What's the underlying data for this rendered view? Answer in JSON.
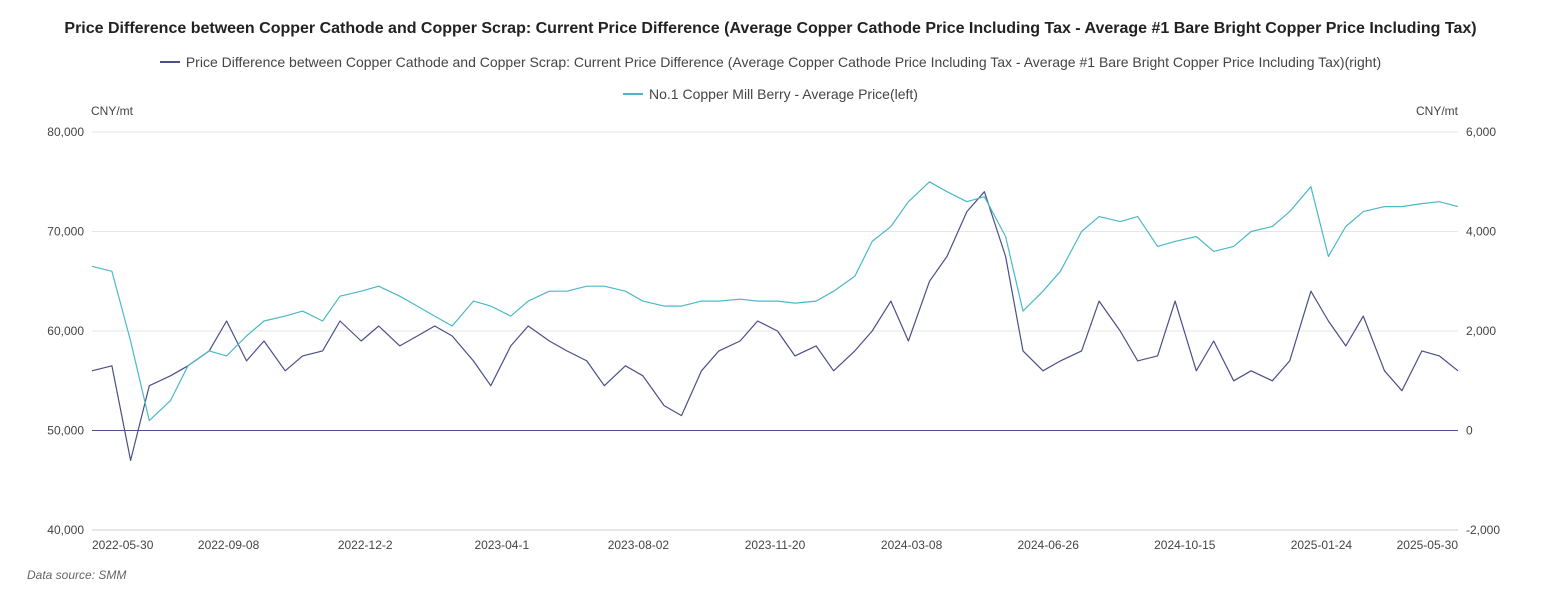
{
  "chart_data": {
    "type": "line",
    "title": "Price Difference between Copper Cathode and Copper Scrap: Current Price Difference (Average Copper Cathode Price Including Tax - Average #1 Bare Bright Copper Price Including Tax)",
    "left_unit": "CNY/mt",
    "right_unit": "CNY/mt",
    "left_axis": {
      "min": 40000,
      "max": 80000,
      "ticks": [
        "40,000",
        "50,000",
        "60,000",
        "70,000",
        "80,000"
      ]
    },
    "right_axis": {
      "min": -2000,
      "max": 6000,
      "ticks": [
        "-2,000",
        "0",
        "2,000",
        "4,000",
        "6,000"
      ]
    },
    "x_ticks": [
      "2022-05-30",
      "2022-09-08",
      "2022-12-2",
      "2023-04-1",
      "2023-08-02",
      "2023-11-20",
      "2024-03-08",
      "2024-06-26",
      "2024-10-15",
      "2025-01-24",
      "2025-05-30"
    ],
    "grid": true,
    "legend_position": "top",
    "data_source": "Data source:  SMM",
    "series": [
      {
        "name": "Price Difference between Copper Cathode and Copper Scrap: Current Price Difference (Average Copper Cathode Price Including Tax - Average #1 Bare Bright Copper Price Including Tax)(right)",
        "axis": "right",
        "color": "#4b4f8a",
        "x": [
          "2022-05-30",
          "2022-06-15",
          "2022-06-30",
          "2022-07-15",
          "2022-08-01",
          "2022-08-15",
          "2022-09-01",
          "2022-09-15",
          "2022-10-01",
          "2022-10-15",
          "2022-11-01",
          "2022-11-15",
          "2022-12-01",
          "2022-12-15",
          "2023-01-01",
          "2023-01-15",
          "2023-02-01",
          "2023-02-15",
          "2023-03-01",
          "2023-03-15",
          "2023-04-01",
          "2023-04-15",
          "2023-05-01",
          "2023-05-15",
          "2023-06-01",
          "2023-06-15",
          "2023-07-01",
          "2023-07-15",
          "2023-08-01",
          "2023-08-15",
          "2023-09-01",
          "2023-09-15",
          "2023-10-01",
          "2023-10-15",
          "2023-11-01",
          "2023-11-15",
          "2023-12-01",
          "2023-12-15",
          "2024-01-01",
          "2024-01-15",
          "2024-02-01",
          "2024-02-15",
          "2024-03-01",
          "2024-03-15",
          "2024-04-01",
          "2024-04-15",
          "2024-05-01",
          "2024-05-15",
          "2024-06-01",
          "2024-06-15",
          "2024-07-01",
          "2024-07-15",
          "2024-08-01",
          "2024-08-15",
          "2024-09-01",
          "2024-09-15",
          "2024-10-01",
          "2024-10-15",
          "2024-11-01",
          "2024-11-15",
          "2024-12-01",
          "2024-12-15",
          "2025-01-01",
          "2025-01-15",
          "2025-02-01",
          "2025-02-15",
          "2025-03-01",
          "2025-03-15",
          "2025-04-01",
          "2025-04-15",
          "2025-05-01",
          "2025-05-15",
          "2025-05-30"
        ],
        "values": [
          1200,
          1300,
          -600,
          900,
          1100,
          1300,
          1600,
          2200,
          1400,
          1800,
          1200,
          1500,
          1600,
          2200,
          1800,
          2100,
          1700,
          1900,
          2100,
          1900,
          1400,
          900,
          1700,
          2100,
          1800,
          1600,
          1400,
          900,
          1300,
          1100,
          500,
          300,
          1200,
          1600,
          1800,
          2200,
          2000,
          1500,
          1700,
          1200,
          1600,
          2000,
          2600,
          1800,
          3000,
          3500,
          4400,
          4800,
          3500,
          1600,
          1200,
          1400,
          1600,
          2600,
          2000,
          1400,
          1500,
          2600,
          1200,
          1800,
          1000,
          1200,
          1000,
          1400,
          2800,
          2200,
          1700,
          2300,
          1200,
          800,
          1600,
          1500,
          1200
        ]
      },
      {
        "name": "No.1 Copper Mill Berry - Average Price(left)",
        "axis": "left",
        "color": "#4bb8c8",
        "x": [
          "2022-05-30",
          "2022-06-15",
          "2022-06-30",
          "2022-07-15",
          "2022-08-01",
          "2022-08-15",
          "2022-09-01",
          "2022-09-15",
          "2022-10-01",
          "2022-10-15",
          "2022-11-01",
          "2022-11-15",
          "2022-12-01",
          "2022-12-15",
          "2023-01-01",
          "2023-01-15",
          "2023-02-01",
          "2023-02-15",
          "2023-03-01",
          "2023-03-15",
          "2023-04-01",
          "2023-04-15",
          "2023-05-01",
          "2023-05-15",
          "2023-06-01",
          "2023-06-15",
          "2023-07-01",
          "2023-07-15",
          "2023-08-01",
          "2023-08-15",
          "2023-09-01",
          "2023-09-15",
          "2023-10-01",
          "2023-10-15",
          "2023-11-01",
          "2023-11-15",
          "2023-12-01",
          "2023-12-15",
          "2024-01-01",
          "2024-01-15",
          "2024-02-01",
          "2024-02-15",
          "2024-03-01",
          "2024-03-15",
          "2024-04-01",
          "2024-04-15",
          "2024-05-01",
          "2024-05-15",
          "2024-06-01",
          "2024-06-15",
          "2024-07-01",
          "2024-07-15",
          "2024-08-01",
          "2024-08-15",
          "2024-09-01",
          "2024-09-15",
          "2024-10-01",
          "2024-10-15",
          "2024-11-01",
          "2024-11-15",
          "2024-12-01",
          "2024-12-15",
          "2025-01-01",
          "2025-01-15",
          "2025-02-01",
          "2025-02-15",
          "2025-03-01",
          "2025-03-15",
          "2025-04-01",
          "2025-04-15",
          "2025-05-01",
          "2025-05-15",
          "2025-05-30"
        ],
        "values": [
          66500,
          66000,
          59000,
          51000,
          53000,
          56500,
          58000,
          57500,
          59500,
          61000,
          61500,
          62000,
          61000,
          63500,
          64000,
          64500,
          63500,
          62500,
          61500,
          60500,
          63000,
          62500,
          61500,
          63000,
          64000,
          64000,
          64500,
          64500,
          64000,
          63000,
          62500,
          62500,
          63000,
          63000,
          63200,
          63000,
          63000,
          62800,
          63000,
          64000,
          65500,
          69000,
          70500,
          73000,
          75000,
          74000,
          73000,
          73500,
          69500,
          62000,
          64000,
          66000,
          70000,
          71500,
          71000,
          71500,
          68500,
          69000,
          69500,
          68000,
          68500,
          70000,
          70500,
          72000,
          74500,
          67500,
          70500,
          72000,
          72500,
          72500,
          72800,
          73000,
          72500
        ]
      }
    ]
  }
}
